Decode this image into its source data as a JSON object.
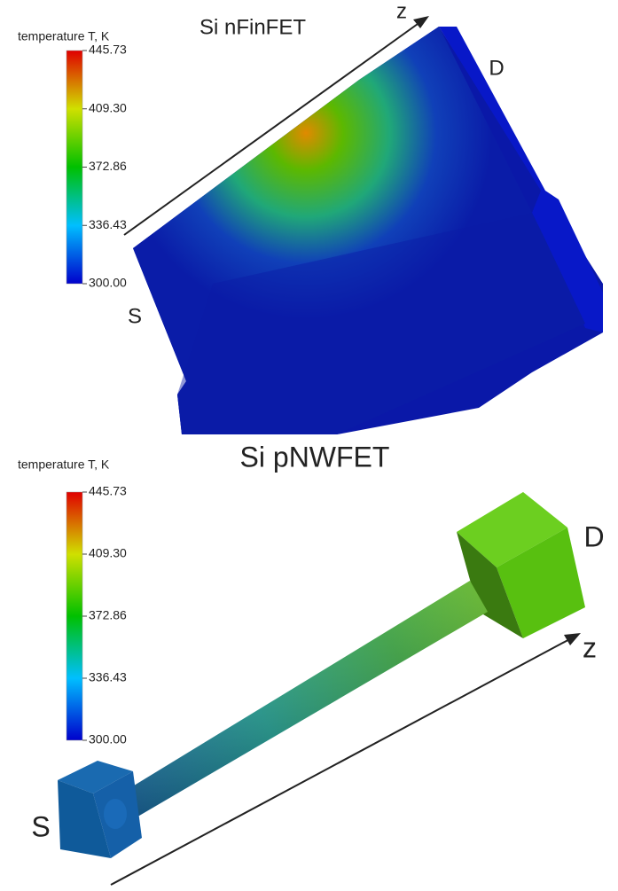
{
  "panels": [
    {
      "title": "Si nFinFET",
      "source_label": "S",
      "drain_label": "D",
      "axis_label": "z",
      "colorbar": {
        "label": "temperature T, K",
        "range": [
          300,
          445.73
        ],
        "ticks": [
          {
            "value": 445.73,
            "label": "445.73"
          },
          {
            "value": 409.3,
            "label": "409.30"
          },
          {
            "value": 372.86,
            "label": "372.86"
          },
          {
            "value": 336.43,
            "label": "336.43"
          },
          {
            "value": 300,
            "label": "300.00"
          }
        ]
      }
    },
    {
      "title": "Si pNWFET",
      "source_label": "S",
      "drain_label": "D",
      "axis_label": "z",
      "colorbar": {
        "label": "temperature T, K",
        "range": [
          300,
          445.73
        ],
        "ticks": [
          {
            "value": 445.73,
            "label": "445.73"
          },
          {
            "value": 409.3,
            "label": "409.30"
          },
          {
            "value": 372.86,
            "label": "372.86"
          },
          {
            "value": 336.43,
            "label": "336.43"
          },
          {
            "value": 300,
            "label": "300.00"
          }
        ]
      }
    }
  ]
}
